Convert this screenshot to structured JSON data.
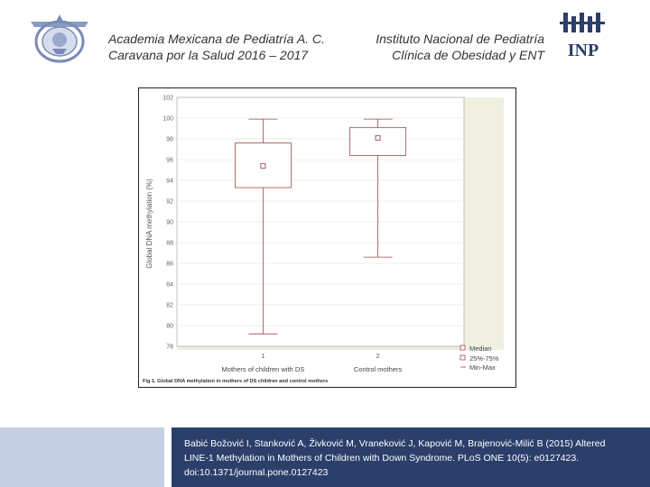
{
  "header": {
    "left_line1": "Academia Mexicana de Pediatría A. C.",
    "left_line2": "Caravana por la Salud 2016 – 2017",
    "right_line1": "Instituto Nacional de Pediatría",
    "right_line2": "Clínica de Obesidad y ENT",
    "inp_logo_text": "INP"
  },
  "chart_data": {
    "type": "boxplot",
    "ylabel": "Global DNA methylation (%)",
    "ylim": [
      78,
      102
    ],
    "yticks": [
      "102",
      "100",
      "98",
      "96",
      "94",
      "92",
      "90",
      "88",
      "86",
      "84",
      "82",
      "80",
      "78"
    ],
    "categories": [
      {
        "tick": "1",
        "name": "Mothers of children with DS",
        "median": 95.4,
        "q1": 93.3,
        "q3": 97.6,
        "min": 79.2,
        "max": 99.9
      },
      {
        "tick": "2",
        "name": "Control mothers",
        "median": 98.1,
        "q1": 96.4,
        "q3": 99.1,
        "min": 86.6,
        "max": 99.9
      }
    ],
    "legend": {
      "position": "bottom-right",
      "items": [
        "Median",
        "25%-75%",
        "Min-Max"
      ]
    },
    "caption": "Fig 1. Global DNA methylation in mothers of DS children and control mothers",
    "colors": {
      "box_stroke": "#a04848",
      "median_marker": "#a04848",
      "plot_bg": "#f0f0e0"
    }
  },
  "footer": {
    "citation_line1": "Babić Božović I, Stanković A, Živković M, Vraneković J, Kapović M, Brajenović-Milić B (2015) Altered",
    "citation_line2": "LINE-1 Methylation in Mothers of Children with Down Syndrome. PLoS ONE 10(5): e0127423.",
    "citation_line3": "doi:10.1371/journal.pone.0127423"
  }
}
